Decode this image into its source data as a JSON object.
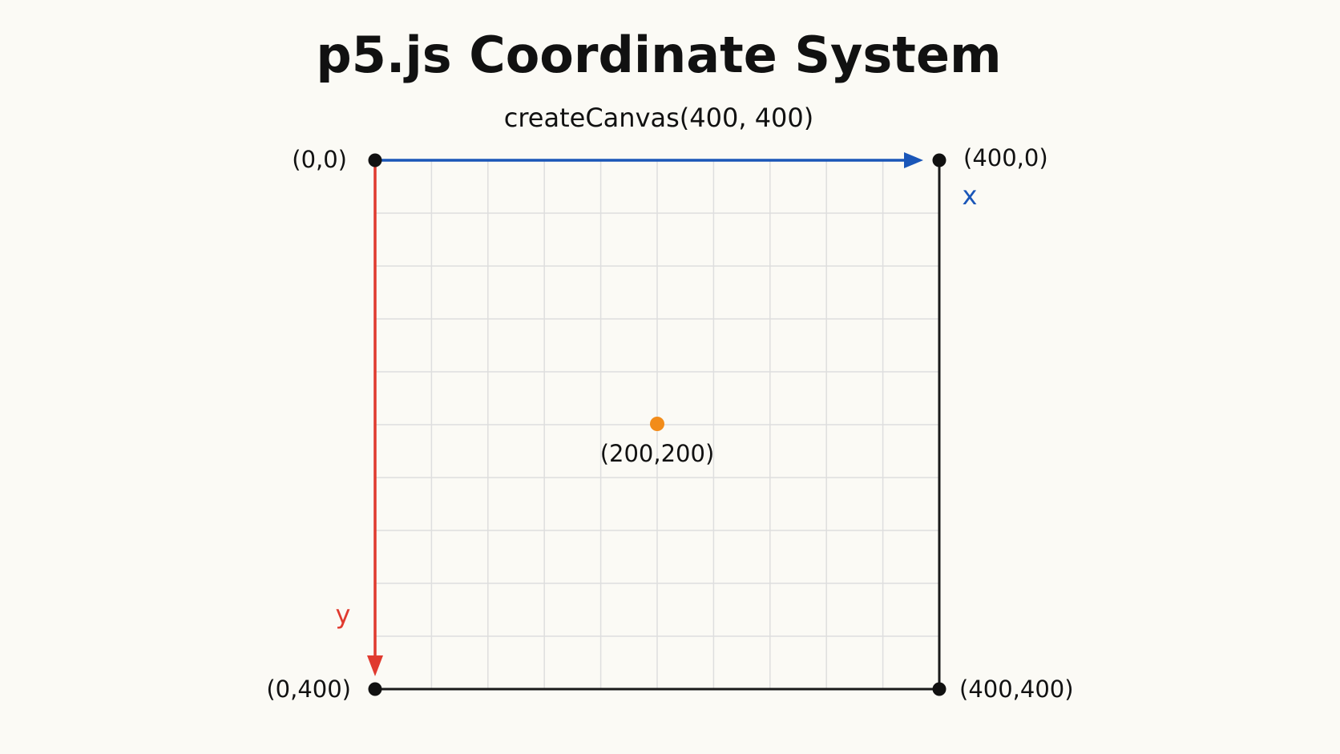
{
  "title": "p5.js Coordinate System",
  "subtitle": "createCanvas(400, 400)",
  "canvas": {
    "width": 400,
    "height": 400,
    "grid_step": 40
  },
  "corners": [
    {
      "name": "top-left",
      "label": "(0,0)",
      "x": 0,
      "y": 0
    },
    {
      "name": "top-right",
      "label": "(400,0)",
      "x": 400,
      "y": 0
    },
    {
      "name": "bottom-left",
      "label": "(0,400)",
      "x": 0,
      "y": 400
    },
    {
      "name": "bottom-right",
      "label": "(400,400)",
      "x": 400,
      "y": 400
    }
  ],
  "center_point": {
    "label": "(200,200)",
    "x": 200,
    "y": 200
  },
  "axes": {
    "x": {
      "label": "x",
      "color": "#1a56b8"
    },
    "y": {
      "label": "y",
      "color": "#e03a2f"
    }
  },
  "colors": {
    "background": "#fbfaf5",
    "grid": "#dedede",
    "border": "#1a1a1a",
    "corner_dot": "#111111",
    "center_dot": "#f28c1a"
  }
}
